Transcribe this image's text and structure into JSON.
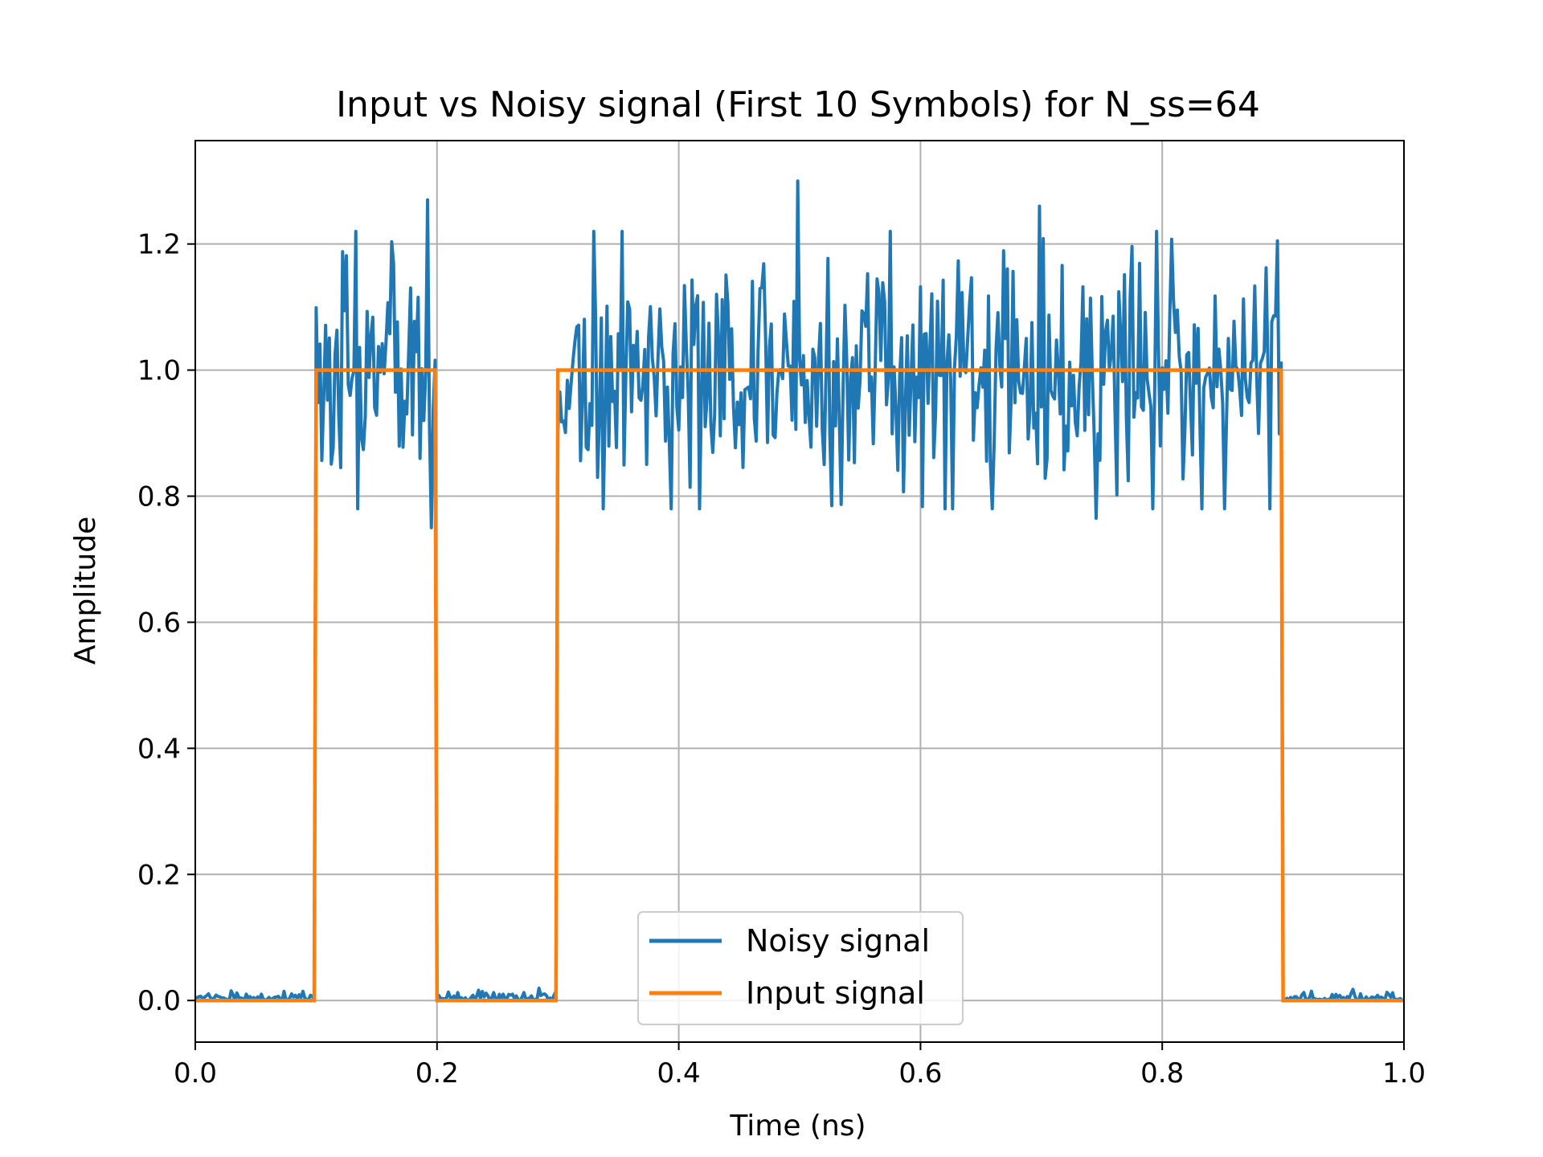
{
  "chart_data": {
    "type": "line",
    "title": "Input vs Noisy signal (First 10 Symbols) for N_ss=64",
    "xlabel": "Time (ns)",
    "ylabel": "Amplitude",
    "xlim": [
      0.0,
      1.0
    ],
    "ylim": [
      -0.066,
      1.364
    ],
    "xticks": [
      "0.0",
      "0.2",
      "0.4",
      "0.6",
      "0.8",
      "1.0"
    ],
    "yticks": [
      "0.0",
      "0.2",
      "0.4",
      "0.6",
      "0.8",
      "1.0",
      "1.2"
    ],
    "grid": true,
    "legend_position": "lower-center",
    "symbol_duration_ns": 0.1,
    "symbols": [
      0,
      1,
      0,
      1,
      1,
      1,
      1,
      1,
      1,
      0
    ],
    "samples_per_symbol": 64,
    "series": [
      {
        "name": "Noisy signal",
        "color": "#1f77b4",
        "description": "Input signal plus noise; values near 0.00–0.03 on 0-symbols and roughly 0.75–1.30 on 1-symbols",
        "peaks": [
          {
            "x": 0.192,
            "y": 1.27
          },
          {
            "x": 0.498,
            "y": 1.3
          },
          {
            "x": 0.698,
            "y": 1.26
          },
          {
            "x": 0.895,
            "y": 1.205
          }
        ],
        "troughs_high_level": [
          {
            "x": 0.195,
            "y": 0.75
          },
          {
            "x": 0.526,
            "y": 0.785
          },
          {
            "x": 0.745,
            "y": 0.765
          }
        ]
      },
      {
        "name": "Input signal",
        "color": "#ff7f0e",
        "x": [
          0.0,
          0.0984,
          0.1,
          0.1984,
          0.2,
          0.2984,
          0.3,
          0.8984,
          0.9,
          1.0
        ],
        "y": [
          0,
          0,
          1,
          1,
          0,
          0,
          1,
          1,
          0,
          0
        ]
      }
    ]
  }
}
